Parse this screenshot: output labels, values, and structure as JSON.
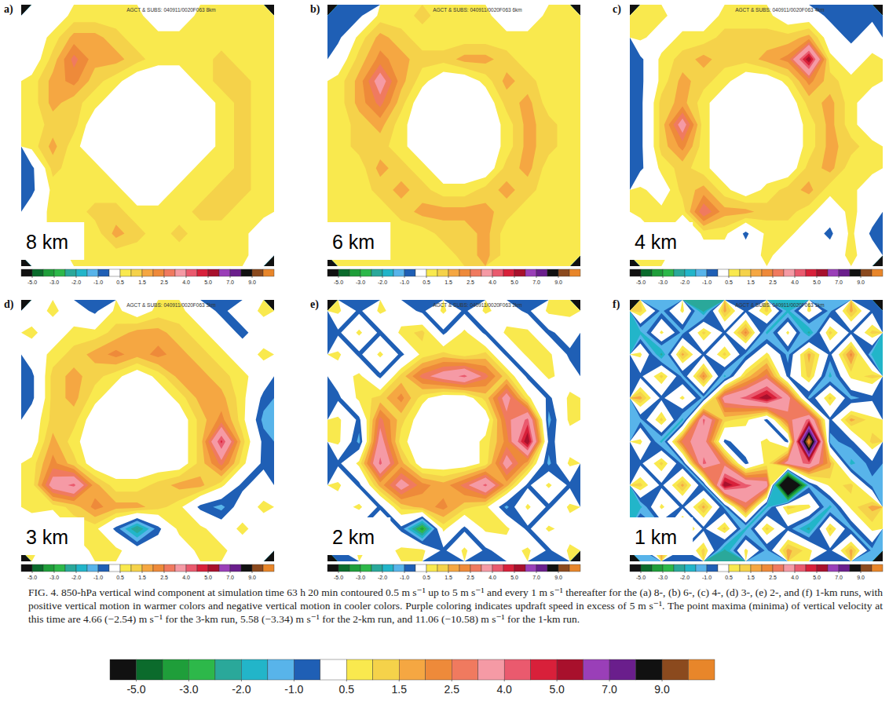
{
  "chart_data": {
    "type": "contour",
    "tick_labels": false,
    "caption": "FIG. 4. 850-hPa vertical wind component at simulation time 63 h 20 min contoured 0.5 m s⁻¹ up to 5 m s⁻¹ and every 1 m s⁻¹ thereafter for the (a) 8-, (b) 6-, (c) 4-, (d) 3-, (e) 2-, and (f) 1-km runs, with positive vertical motion in warmer colors and negative vertical motion in cooler colors. Purple coloring indicates updraft speed in excess of 5 m s⁻¹. The point maxima (minima) of vertical velocity at this time are 4.66 (−2.54) m s⁻¹ for the 3-km run, 5.58 (−3.34) m s⁻¹ for the 2-km run, and 11.06 (−10.58) m s⁻¹ for the 1-km run.",
    "colorbar": {
      "levels": [
        -5,
        -4,
        -3,
        -2.5,
        -2,
        -1.5,
        -1,
        -0.5,
        0.5,
        1,
        1.5,
        2,
        2.5,
        3,
        4,
        4.5,
        5,
        6,
        7,
        8,
        9,
        10
      ],
      "colors": [
        "#111111",
        "#0b6b2c",
        "#1f9e3a",
        "#2db84a",
        "#2aa89a",
        "#22b5c9",
        "#58b4ea",
        "#1f5fb5",
        "#ffffff",
        "#f9e94e",
        "#f5d24a",
        "#f5a742",
        "#ee8a3a",
        "#f07a5f",
        "#f59aa5",
        "#ea5a6e",
        "#d8203a",
        "#a8102c",
        "#9a3fb8",
        "#6a1e8c",
        "#111111",
        "#8b4a1e",
        "#e8862a"
      ],
      "ticks": [
        {
          "value": -5,
          "label": "-5.0"
        },
        {
          "value": -3,
          "label": "-3.0"
        },
        {
          "value": -2,
          "label": "-2.0"
        },
        {
          "value": -1,
          "label": "-1.0"
        },
        0.5,
        1.5,
        2.5,
        {
          "value": 4,
          "label": "4.0"
        },
        {
          "value": 5,
          "label": "5.0"
        },
        {
          "value": 7,
          "label": "7.0"
        },
        {
          "value": 9,
          "label": "9.0"
        }
      ]
    },
    "panels": [
      {
        "letter": "a)",
        "header": "AGCT & SUBS: 040911/0020F063 8km",
        "label": "8 km",
        "z": [
          [
            0,
            0,
            0.7,
            0.7,
            0.7,
            0.7,
            0,
            0,
            0.7,
            0.7,
            0.7,
            0.7
          ],
          [
            0,
            0.7,
            1.7,
            1.7,
            1.2,
            0.7,
            0.7,
            0.7,
            0.7,
            0.7,
            0.7,
            0.7
          ],
          [
            0,
            1.2,
            2.7,
            1.7,
            1.7,
            1.2,
            0.7,
            0.7,
            0.7,
            1.2,
            0.7,
            0.7
          ],
          [
            0.7,
            1.7,
            2.2,
            1.2,
            0.7,
            0,
            0,
            0,
            0.7,
            1.2,
            1.2,
            0.7
          ],
          [
            0.7,
            1.7,
            1.2,
            0.7,
            0,
            0,
            0,
            0,
            0,
            0.7,
            1.2,
            0.7
          ],
          [
            0.7,
            1.2,
            1.2,
            0,
            0,
            0,
            0,
            0,
            0,
            0.7,
            1.2,
            0.7
          ],
          [
            0.7,
            1.7,
            0.7,
            0,
            0,
            0,
            0,
            0,
            0,
            0.7,
            1.2,
            0.7
          ],
          [
            -0.7,
            1.2,
            0.7,
            0.7,
            0,
            0,
            0,
            0,
            0.7,
            0.7,
            1.2,
            0.7
          ],
          [
            -0.7,
            0.7,
            0.7,
            0.7,
            0.7,
            0,
            0,
            0.7,
            0.7,
            1.2,
            1.2,
            0.7
          ],
          [
            0,
            0.7,
            0.7,
            1.2,
            1.2,
            0.7,
            0.7,
            0.7,
            1.2,
            1.2,
            0.7,
            0.7
          ],
          [
            0,
            0.7,
            0.7,
            0.7,
            1.7,
            1.2,
            0.7,
            1.2,
            0.7,
            0.7,
            0.7,
            0
          ],
          [
            0,
            0,
            0.7,
            0.7,
            0.7,
            0.7,
            0.7,
            0.7,
            0.7,
            0.7,
            0.7,
            0
          ]
        ]
      },
      {
        "letter": "b)",
        "header": "AGCT & SUBS: 040911/0020F063 6km",
        "label": "6 km",
        "z": [
          [
            -0.7,
            -0.7,
            0.7,
            0.7,
            1.2,
            0.7,
            0.7,
            0.7,
            0,
            0,
            0.7,
            0.7
          ],
          [
            -0.7,
            0.7,
            1.7,
            1.2,
            0.7,
            0.7,
            0.7,
            0.7,
            0.7,
            0.7,
            0.7,
            0.7
          ],
          [
            0,
            1.2,
            2.2,
            1.7,
            1.2,
            1.2,
            1.7,
            1.7,
            1.2,
            0.7,
            0.7,
            0.7
          ],
          [
            0.7,
            1.7,
            3.5,
            1.7,
            0.7,
            0,
            0,
            0.7,
            1.7,
            1.2,
            0.7,
            0.7
          ],
          [
            0.7,
            1.7,
            2.7,
            1.2,
            0,
            0,
            0,
            0,
            1.2,
            1.7,
            0.7,
            0.7
          ],
          [
            0.7,
            1.2,
            1.7,
            0.7,
            0,
            0,
            0,
            0,
            0.7,
            1.7,
            1.2,
            0.7
          ],
          [
            0.7,
            1.2,
            1.2,
            0.7,
            0,
            0,
            0,
            0,
            0.7,
            1.7,
            1.2,
            0.7
          ],
          [
            0.7,
            0.7,
            1.7,
            1.2,
            0.7,
            0,
            0,
            0,
            1.2,
            1.7,
            0.7,
            0.7
          ],
          [
            0.7,
            0.7,
            1.2,
            1.7,
            1.2,
            0.7,
            0.7,
            1.2,
            1.7,
            1.2,
            0.7,
            0.7
          ],
          [
            0.7,
            0.7,
            0.7,
            1.2,
            1.7,
            1.7,
            1.7,
            1.7,
            1.2,
            0.7,
            0.7,
            0.7
          ],
          [
            0.7,
            0.7,
            0.7,
            0.7,
            0.7,
            1.2,
            1.2,
            1.7,
            0.7,
            0.7,
            0.7,
            0.7
          ],
          [
            0.7,
            0.7,
            0.7,
            0.7,
            0.7,
            0.7,
            1.2,
            1.7,
            0.7,
            0.7,
            0.7,
            0.7
          ]
        ]
      },
      {
        "letter": "c)",
        "header": "AGCT & SUBS: 040911/0020F063 4km",
        "label": "4 km",
        "z": [
          [
            0.7,
            0.7,
            0,
            0,
            0.7,
            0.7,
            0.7,
            0,
            0,
            -0.7,
            -0.7,
            -0.7
          ],
          [
            0.7,
            0,
            0.7,
            0.7,
            1.2,
            1.2,
            1.2,
            1.2,
            1.7,
            0,
            -0.7,
            0
          ],
          [
            -0.7,
            0.7,
            1.2,
            1.7,
            1.2,
            1.2,
            1.7,
            2.2,
            5.5,
            0.7,
            0,
            0.7
          ],
          [
            -0.7,
            0.7,
            1.7,
            1.2,
            0.7,
            0,
            0,
            0.7,
            2.2,
            1.2,
            0.7,
            0.7
          ],
          [
            -0.7,
            1.2,
            1.7,
            0.7,
            0,
            0,
            0,
            0,
            1.2,
            1.7,
            0.7,
            0
          ],
          [
            -0.7,
            1.2,
            3.5,
            0.7,
            0,
            0,
            0,
            0,
            0.7,
            1.7,
            0.7,
            0
          ],
          [
            -0.7,
            1.2,
            2.2,
            0.7,
            0,
            0,
            0,
            0,
            0.7,
            1.7,
            1.2,
            0.7
          ],
          [
            -0.7,
            0.7,
            1.2,
            0.7,
            0,
            0,
            0,
            0,
            1.2,
            1.7,
            0.7,
            0.7
          ],
          [
            0.7,
            0,
            1.2,
            1.7,
            0.7,
            0,
            0.7,
            1.2,
            1.7,
            0.7,
            0.7,
            0
          ],
          [
            0.7,
            0.7,
            0.7,
            3.0,
            1.7,
            1.7,
            1.2,
            1.2,
            0.7,
            0,
            0.7,
            0
          ],
          [
            0,
            0.7,
            -0.7,
            0.7,
            0.7,
            -0.7,
            0.7,
            0.7,
            0,
            -0.7,
            0.7,
            -0.7
          ],
          [
            0.7,
            0.7,
            0,
            0,
            0,
            0,
            0.7,
            0,
            0,
            0,
            0.7,
            0
          ]
        ]
      },
      {
        "letter": "d)",
        "header": "AGCT & SUBS: 040911/0020F063 3km",
        "label": "3 km",
        "z": [
          [
            0,
            0.7,
            0,
            -0.7,
            0.7,
            0,
            0.7,
            0.7,
            0,
            -0.7,
            0,
            0.7
          ],
          [
            0.7,
            0,
            0.7,
            0.7,
            1.2,
            1.7,
            1.7,
            1.2,
            0.7,
            0,
            -0.7,
            0
          ],
          [
            0,
            0.7,
            1.2,
            1.7,
            2.2,
            1.7,
            2.2,
            1.7,
            1.2,
            0.7,
            0,
            0.7
          ],
          [
            -0.7,
            1.2,
            1.7,
            1.2,
            0.7,
            0,
            0.7,
            1.7,
            1.7,
            1.2,
            0.7,
            0
          ],
          [
            -0.7,
            1.2,
            1.7,
            0.7,
            0,
            0,
            0,
            0.7,
            1.7,
            1.7,
            0.7,
            -0.7
          ],
          [
            0,
            1.2,
            1.2,
            0,
            0,
            0,
            0,
            0,
            1.2,
            2.2,
            0.7,
            -1.2
          ],
          [
            0,
            1.7,
            0.7,
            0,
            0,
            0,
            0,
            0,
            1.2,
            4.66,
            1.2,
            -0.7
          ],
          [
            0.7,
            2.2,
            1.2,
            0,
            0,
            0,
            0,
            0,
            1.2,
            2.7,
            0.7,
            -0.7
          ],
          [
            0.7,
            3.5,
            4.2,
            1.7,
            0.7,
            0.7,
            1.2,
            1.7,
            1.7,
            0.7,
            -0.7,
            0
          ],
          [
            0.7,
            0.7,
            1.2,
            2.2,
            1.7,
            1.7,
            1.2,
            0.7,
            -0.7,
            -1.2,
            0,
            0.7
          ],
          [
            0,
            -0.7,
            0.7,
            0.7,
            -0.7,
            -2.54,
            -0.7,
            0.7,
            0.7,
            0,
            0.7,
            0
          ],
          [
            0.7,
            0,
            0,
            0.7,
            0.7,
            0,
            0,
            0,
            0.7,
            0.7,
            0,
            0
          ]
        ]
      },
      {
        "letter": "e)",
        "header": "AGCT & SUBS: 040911/0020F063 2km",
        "label": "2 km",
        "z": [
          [
            0.7,
            -0.7,
            0.7,
            0,
            -0.7,
            0.7,
            -0.7,
            0.7,
            0,
            -0.7,
            0.7,
            0.7
          ],
          [
            -0.7,
            0.7,
            -0.7,
            0.7,
            1.2,
            -0.7,
            0.7,
            -0.7,
            0.7,
            0.7,
            -0.7,
            0
          ],
          [
            0.7,
            -0.7,
            0.7,
            -0.7,
            0.7,
            1.2,
            0.7,
            1.2,
            -0.7,
            0.7,
            0.7,
            -0.7
          ],
          [
            0,
            0.7,
            -0.7,
            1.2,
            2.7,
            3.5,
            4.2,
            2.7,
            1.2,
            -0.7,
            0.7,
            0
          ],
          [
            -0.7,
            0.7,
            1.2,
            2.2,
            0.7,
            0,
            0,
            1.2,
            3.5,
            0.7,
            -0.7,
            0.7
          ],
          [
            0.7,
            -0.7,
            2.7,
            1.2,
            0,
            0,
            0,
            0,
            2.7,
            4.2,
            -1.2,
            0.7
          ],
          [
            0.7,
            -1.2,
            3.5,
            0.7,
            0,
            0,
            0,
            0.7,
            2.2,
            5.58,
            -0.7,
            0
          ],
          [
            -0.7,
            0.7,
            4.2,
            1.7,
            0,
            0,
            0,
            0.7,
            3.5,
            1.7,
            -1.2,
            0.7
          ],
          [
            0.7,
            -0.7,
            1.7,
            3.5,
            2.2,
            1.7,
            2.7,
            4.2,
            1.7,
            -0.7,
            0.7,
            -0.7
          ],
          [
            0,
            0.7,
            -0.7,
            1.2,
            1.7,
            2.2,
            1.2,
            0.7,
            -1.2,
            0.7,
            -0.7,
            0.7
          ],
          [
            0.7,
            -0.7,
            0.7,
            -0.7,
            -3.34,
            0.7,
            -0.7,
            0.7,
            0.7,
            -0.7,
            0.7,
            0
          ],
          [
            -0.7,
            0.7,
            0,
            0.7,
            0.7,
            -0.7,
            0.7,
            -0.7,
            0,
            0.7,
            -0.7,
            0.7
          ]
        ]
      },
      {
        "letter": "f)",
        "header": "AGCT & SUBS: 040911/0020F063 1km",
        "label": "1 km",
        "z": [
          [
            1.2,
            -1.2,
            0.7,
            -2.2,
            1.7,
            -0.7,
            1.2,
            -1.7,
            0.7,
            -1.2,
            1.7,
            -0.7
          ],
          [
            -1.7,
            0.7,
            -1.2,
            1.2,
            -0.7,
            2.2,
            -1.7,
            0.7,
            -2.2,
            1.2,
            -0.7,
            1.2
          ],
          [
            0.7,
            -2.2,
            1.7,
            -0.7,
            1.2,
            -1.2,
            0.7,
            -1.2,
            1.7,
            -0.7,
            2.2,
            -1.7
          ],
          [
            -0.7,
            1.2,
            -1.2,
            2.2,
            -1.7,
            1.2,
            2.7,
            -0.7,
            1.2,
            -1.7,
            0.7,
            1.2
          ],
          [
            1.7,
            -0.7,
            0.7,
            -1.2,
            3.5,
            4.2,
            5.5,
            3.5,
            -1.2,
            1.2,
            -1.2,
            -0.7
          ],
          [
            -1.2,
            1.2,
            -1.7,
            4.2,
            1.2,
            0.7,
            -0.7,
            2.7,
            4.2,
            -0.7,
            1.7,
            0.7
          ],
          [
            0.7,
            -1.7,
            2.7,
            3.5,
            -0.7,
            0,
            0.7,
            -0.7,
            11.06,
            -1.2,
            -0.7,
            1.2
          ],
          [
            -0.7,
            1.2,
            -1.2,
            4.2,
            2.7,
            -0.7,
            0.7,
            3.5,
            4.2,
            1.7,
            -1.7,
            -0.7
          ],
          [
            1.2,
            -0.7,
            1.7,
            -1.2,
            5.5,
            4.2,
            3.5,
            -10.58,
            -1.2,
            0.7,
            1.2,
            -1.2
          ],
          [
            -1.7,
            0.7,
            -0.7,
            1.7,
            -1.2,
            2.7,
            -1.7,
            1.2,
            0.7,
            -1.7,
            0.7,
            1.7
          ],
          [
            0.7,
            -1.2,
            2.2,
            -0.7,
            1.2,
            -1.7,
            1.2,
            -0.7,
            -2.2,
            1.2,
            -1.2,
            0.7
          ],
          [
            -1.2,
            1.7,
            -0.7,
            1.2,
            -2.2,
            0.7,
            -1.2,
            1.7,
            0.7,
            -0.7,
            1.7,
            -1.2
          ]
        ]
      }
    ]
  }
}
